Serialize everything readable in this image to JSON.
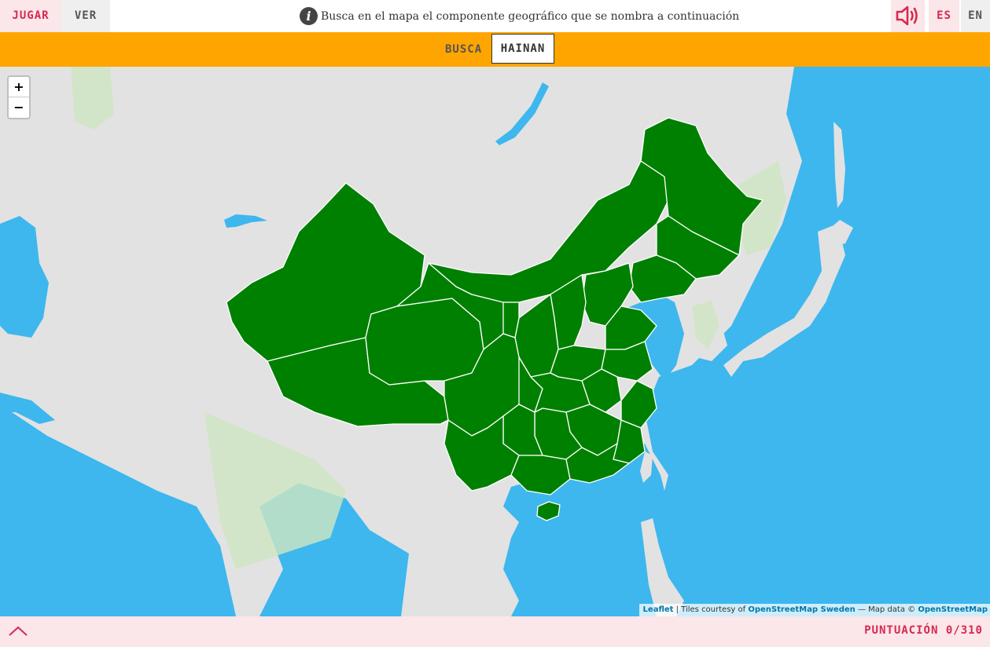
{
  "topbar": {
    "play_label": "JUGAR",
    "view_label": "VER",
    "instruction": "Busca en el mapa el componente geográfico que se nombra a continuación",
    "info_icon": "info-icon",
    "sound_icon": "speaker-icon",
    "lang_es": "ES",
    "lang_en": "EN"
  },
  "question": {
    "prompt_label": "BUSCA",
    "target": "HAINAN"
  },
  "map": {
    "zoom_in": "+",
    "zoom_out": "−",
    "attribution": {
      "leaflet": "Leaflet",
      "tiles_text": " | Tiles courtesy of ",
      "osm_sweden": "OpenStreetMap Sweden",
      "data_text": " — Map data © ",
      "osm": "OpenStreetMap"
    },
    "colors": {
      "water": "#3db7ee",
      "land": "#e2e2e2",
      "vegetation": "#cfe6c2",
      "province_fill": "#008000",
      "province_border": "#ffffff"
    }
  },
  "footer": {
    "expand_icon": "chevron-up-icon",
    "score_label": "PUNTUACIÓN",
    "score_value": "0/310"
  },
  "colors": {
    "accent": "#d62a4f",
    "question_bar": "#ffa500",
    "pink_bg": "#fbe6ea",
    "grey_bg": "#efefef"
  }
}
